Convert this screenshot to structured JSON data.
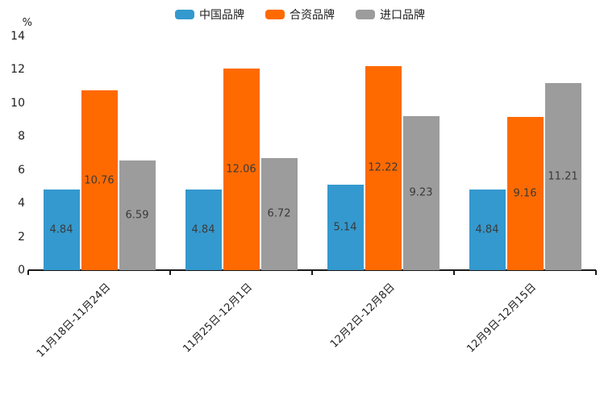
{
  "chart_data": {
    "type": "bar",
    "ylabel": "%",
    "categories": [
      "11月18日-11月24日",
      "11月25日-12月1日",
      "12月2日-12月8日",
      "12月9日-12月15日"
    ],
    "series": [
      {
        "name": "中国品牌",
        "color": "#3499CE",
        "values": [
          4.84,
          4.84,
          5.14,
          4.84
        ]
      },
      {
        "name": "合资品牌",
        "color": "#FF6A00",
        "values": [
          10.76,
          12.06,
          12.22,
          9.16
        ]
      },
      {
        "name": "进口品牌",
        "color": "#9C9C9C",
        "values": [
          6.59,
          6.72,
          9.23,
          11.21
        ]
      }
    ],
    "data_labels": [
      "4.84",
      "10.76",
      "6.59",
      "4.84",
      "12.06",
      "6.72",
      "5.14",
      "12.22",
      "9.23",
      "4.84",
      "9.16",
      "11.21"
    ],
    "y_axis": {
      "min": 0,
      "max": 14,
      "tick_step": 2,
      "ticks": [
        0,
        2,
        4,
        6,
        8,
        10,
        12,
        14
      ]
    },
    "grid": false,
    "legend_position": "top",
    "colors": {
      "axis": "#1a1a1a",
      "tick_text": "#1f1f1f",
      "bar_label_text": "#3a3a3a",
      "background": "#ffffff"
    }
  }
}
